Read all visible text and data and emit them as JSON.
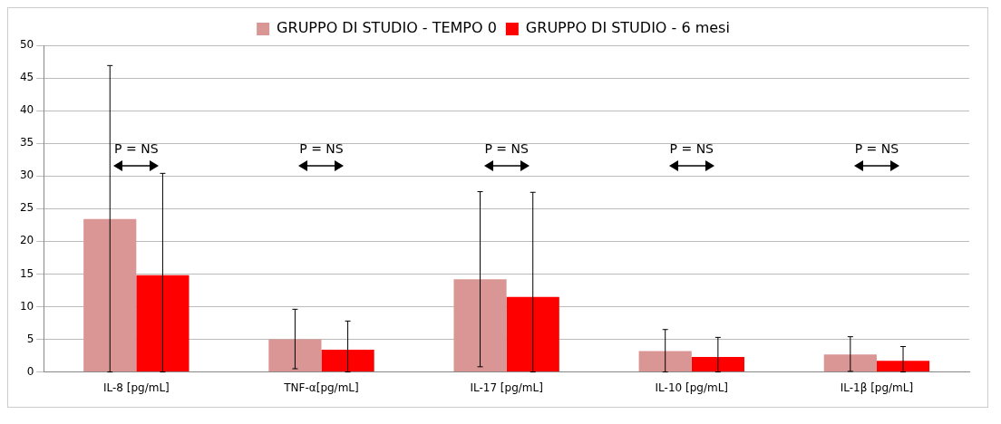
{
  "chart_data": {
    "type": "bar",
    "categories": [
      "IL-8 [pg/mL]",
      "TNF-α[pg/mL]",
      "IL-17 [pg/mL]",
      "IL-10 [pg/mL]",
      "IL-1β [pg/mL]"
    ],
    "series": [
      {
        "name": "GRUPPO DI STUDIO - TEMPO 0",
        "color": "#d99694",
        "values": [
          23.4,
          5.0,
          14.2,
          3.2,
          2.7
        ],
        "errors": [
          [
            0,
            46.9
          ],
          [
            0.5,
            9.6
          ],
          [
            0.8,
            27.6
          ],
          [
            0,
            6.5
          ],
          [
            0.1,
            5.4
          ]
        ]
      },
      {
        "name": "GRUPPO DI STUDIO - 6 mesi",
        "color": "#ff0000",
        "values": [
          14.8,
          3.4,
          11.5,
          2.3,
          1.7
        ],
        "errors": [
          [
            0,
            30.4
          ],
          [
            0,
            7.8
          ],
          [
            0,
            27.5
          ],
          [
            0,
            5.3
          ],
          [
            0,
            3.9
          ]
        ]
      }
    ],
    "ylim": [
      0,
      50
    ],
    "yticks": [
      0,
      5,
      10,
      15,
      20,
      25,
      30,
      35,
      40,
      45,
      50
    ],
    "grid": "y",
    "legend": "top",
    "annotations": [
      "P = NS",
      "P = NS",
      "P = NS",
      "P = NS",
      "P = NS"
    ]
  }
}
